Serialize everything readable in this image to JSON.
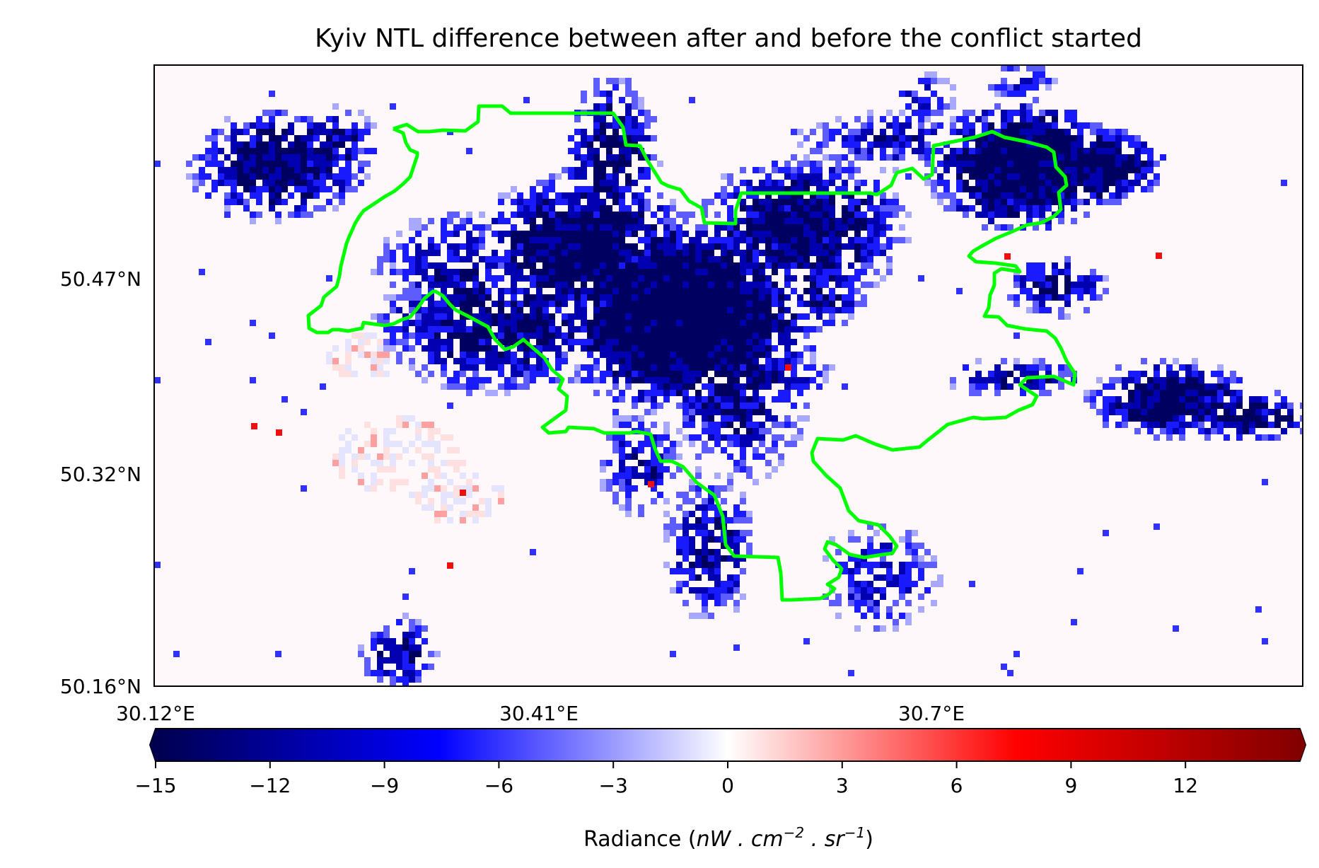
{
  "title": "Kyiv NTL difference between after and before the conflict started",
  "map": {
    "x_ticks": [
      {
        "value": 30.12,
        "label": "30.12°E"
      },
      {
        "value": 30.41,
        "label": "30.41°E"
      },
      {
        "value": 30.7,
        "label": "30.7°E"
      }
    ],
    "y_ticks": [
      {
        "value": 50.47,
        "label": "50.47°N"
      },
      {
        "value": 50.32,
        "label": "50.32°N"
      },
      {
        "value": 50.16,
        "label": "50.16°N"
      }
    ],
    "lon_range": [
      30.12,
      30.973
    ],
    "lat_range": [
      50.16,
      50.6
    ],
    "boundary_color": "#00ff00",
    "background_color": "#fff8fa",
    "boundary_description": "Kyiv city administrative boundary"
  },
  "colorbar": {
    "label_prefix": "Radiance (",
    "label_math": "nW . cm",
    "exp1": "−2",
    "mid": " . sr",
    "exp2": "−1",
    "label_suffix": ")",
    "min": -15,
    "max": 15,
    "ticks": [
      "−15",
      "−12",
      "−9",
      "−6",
      "−3",
      "0",
      "3",
      "6",
      "9",
      "12"
    ],
    "tick_values": [
      -15,
      -12,
      -9,
      -6,
      -3,
      0,
      3,
      6,
      9,
      12
    ],
    "colormap": "seismic",
    "colors": [
      "#00004c",
      "#0000ff",
      "#ffffff",
      "#ff0000",
      "#800000"
    ]
  }
}
